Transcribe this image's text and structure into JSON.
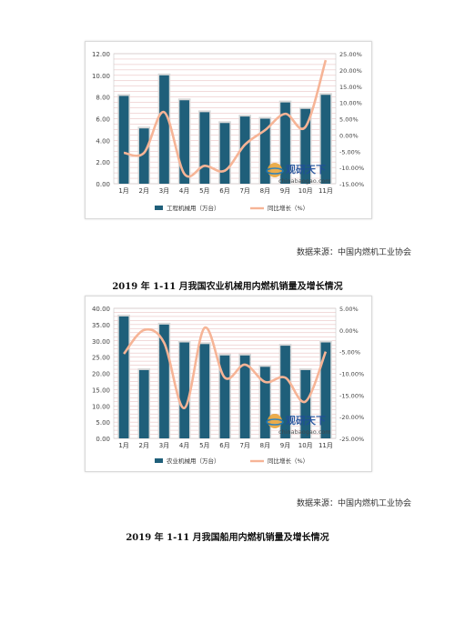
{
  "chart_data": [
    {
      "type": "bar+line",
      "categories": [
        "1月",
        "2月",
        "3月",
        "4月",
        "5月",
        "6月",
        "7月",
        "8月",
        "9月",
        "10月",
        "11月"
      ],
      "series": [
        {
          "name": "工程机械用（万台）",
          "type": "bar",
          "axis": "left",
          "values": [
            8.1,
            5.1,
            10.0,
            7.7,
            6.6,
            5.6,
            6.2,
            6.0,
            7.5,
            6.9,
            8.2
          ]
        },
        {
          "name": "同比增长（%）",
          "type": "line",
          "axis": "right",
          "values": [
            -5.5,
            -5.5,
            7.0,
            -12.0,
            -9.5,
            -11.0,
            -3.0,
            1.5,
            6.5,
            2.5,
            23.0
          ]
        }
      ],
      "ylim_left": [
        0,
        12
      ],
      "yticks_left": [
        "0.00",
        "2.00",
        "4.00",
        "6.00",
        "8.00",
        "10.00",
        "12.00"
      ],
      "ylim_right": [
        -15,
        25
      ],
      "yticks_right": [
        "-15.00%",
        "-10.00%",
        "-5.00%",
        "0.00%",
        "5.00%",
        "10.00%",
        "15.00%",
        "20.00%",
        "25.00%"
      ],
      "colors": {
        "bar": "#1f5f7a",
        "line": "#f6b496"
      }
    },
    {
      "type": "bar+line",
      "categories": [
        "1月",
        "2月",
        "3月",
        "4月",
        "5月",
        "6月",
        "7月",
        "8月",
        "9月",
        "10月",
        "11月"
      ],
      "series": [
        {
          "name": "农业机械用（万台）",
          "type": "bar",
          "axis": "left",
          "values": [
            37.5,
            21.0,
            35.0,
            29.5,
            29.0,
            25.5,
            25.5,
            22.0,
            28.5,
            21.0,
            29.5
          ]
        },
        {
          "name": "同比增长（%）",
          "type": "line",
          "axis": "right",
          "values": [
            -5.5,
            0.0,
            -3.0,
            -18.0,
            0.5,
            -11.0,
            -8.0,
            -12.0,
            -11.0,
            -16.5,
            -5.0
          ]
        }
      ],
      "ylim_left": [
        0,
        40
      ],
      "yticks_left": [
        "0.00",
        "5.00",
        "10.00",
        "15.00",
        "20.00",
        "25.00",
        "30.00",
        "35.00",
        "40.00"
      ],
      "ylim_right": [
        -25,
        5
      ],
      "yticks_right": [
        "-25.00%",
        "-20.00%",
        "-15.00%",
        "-10.00%",
        "-5.00%",
        "0.00%",
        "5.00%"
      ],
      "colors": {
        "bar": "#1f5f7a",
        "line": "#f6b496"
      }
    }
  ],
  "watermark": {
    "brand": "观研天下",
    "site": "chinabaogao.com"
  },
  "page": {
    "source1": "数据来源：中国内燃机工业协会",
    "caption1": "2019 年 1-11 月我国农业机械用内燃机销量及增长情况",
    "source2": "数据来源：中国内燃机工业协会",
    "caption2": "2019 年 1-11 月我国船用内燃机销量及增长情况"
  }
}
